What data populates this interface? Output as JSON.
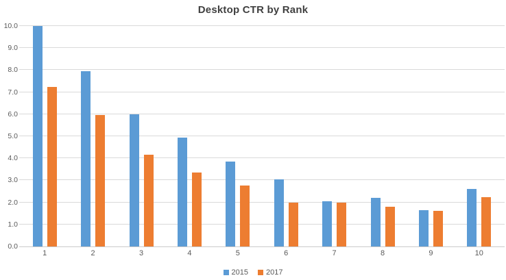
{
  "chart_data": {
    "type": "bar",
    "title": "Desktop CTR by Rank",
    "categories": [
      "1",
      "2",
      "3",
      "4",
      "5",
      "6",
      "7",
      "8",
      "9",
      "10"
    ],
    "series": [
      {
        "name": "2015",
        "color": "#5b9bd5",
        "values": [
          10.0,
          7.95,
          6.0,
          4.95,
          3.85,
          3.05,
          2.05,
          2.2,
          1.65,
          2.6
        ]
      },
      {
        "name": "2017",
        "color": "#ed7d31",
        "values": [
          7.25,
          5.95,
          4.15,
          3.35,
          2.75,
          2.0,
          2.0,
          1.8,
          1.6,
          2.25
        ]
      }
    ],
    "xlabel": "",
    "ylabel": "",
    "ylim": [
      0,
      10
    ],
    "ytick_step": 1.0,
    "ytick_labels": [
      "0.0",
      "1.0",
      "2.0",
      "3.0",
      "4.0",
      "5.0",
      "6.0",
      "7.0",
      "8.0",
      "9.0",
      "10.0"
    ],
    "grid": true,
    "legend_position": "bottom-center"
  },
  "colors": {
    "title_text": "#404040",
    "axis_text": "#595959",
    "gridline": "#d9d9d9",
    "axis_line": "#c9c9c9",
    "background": "#ffffff"
  }
}
